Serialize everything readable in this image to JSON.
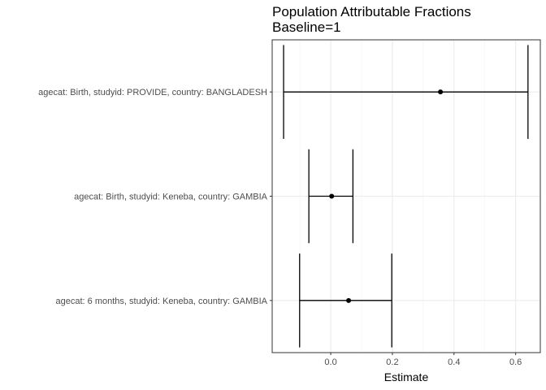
{
  "chart_data": {
    "type": "forest",
    "title": "Population Attributable Fractions",
    "subtitle": "Baseline=1",
    "xlabel": "Estimate",
    "ylabel": "",
    "xlim": [
      -0.19,
      0.68
    ],
    "x_ticks": [
      0.0,
      0.2,
      0.4,
      0.6
    ],
    "x_tick_labels": [
      "0.0",
      "0.2",
      "0.4",
      "0.6"
    ],
    "grid": true,
    "categories": [
      "agecat: Birth, studyid: PROVIDE, country: BANGLADESH",
      "agecat: Birth, studyid: Keneba, country: GAMBIA",
      "agecat: 6 months, studyid: Keneba, country: GAMBIA"
    ],
    "estimates": [
      0.356,
      0.003,
      0.058
    ],
    "lower": [
      -0.153,
      -0.071,
      -0.101
    ],
    "upper": [
      0.64,
      0.072,
      0.198
    ]
  }
}
